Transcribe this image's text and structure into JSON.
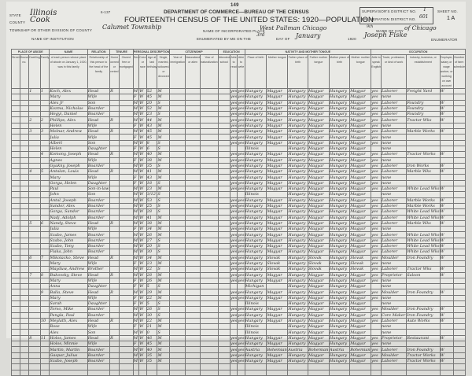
{
  "header": {
    "page_number": "149",
    "form_number": "6-137",
    "department": "DEPARTMENT OF COMMERCE—BUREAU OF THE CENSUS",
    "title": "FOURTEENTH CENSUS OF THE UNITED STATES: 1920—POPULATION",
    "state_label": "STATE",
    "state": "Illinois",
    "county_label": "COUNTY",
    "county": "Cook",
    "township_label": "TOWNSHIP OR OTHER DIVISION OF COUNTY",
    "township": "Calumet Township",
    "institution_label": "NAME OF INSTITUTION",
    "incorporated_place_label": "NAME OF INCORPORATED PLACE",
    "incorporated_place": "West Pullman Chicago",
    "ward_label": "WARD OF CITY",
    "ward": "9th",
    "city": "of Chicago",
    "enumerated_label": "ENUMERATED BY ME ON THE",
    "enumerated_day": "3rd",
    "day_of_label": "DAY OF",
    "enumerated_month": "January",
    "year": "1920",
    "enumerator": "Joseph Fiske",
    "enumerator_label": "ENUMERATOR",
    "supervisor_label": "SUPERVISOR'S DISTRICT NO.",
    "supervisor_district": "1",
    "ed_label": "ENUMERATION DISTRICT NO.",
    "enumeration_district": "601",
    "sheet_label": "SHEET NO.",
    "sheet": "1 A"
  },
  "sections": [
    "PLACE OF ABODE",
    "NAME",
    "RELATION",
    "TENURE",
    "PERSONAL DESCRIPTION",
    "CITIZENSHIP",
    "EDUCATION",
    "NATIVITY AND MOTHER TONGUE",
    "OCCUPATION"
  ],
  "column_headers": [
    "Street",
    "House no.",
    "Dwelling",
    "Family",
    "of each person whose place of abode on January 1, 1920, was in this family",
    "Relationship of this person to the head of the family",
    "Home owned or rented",
    "Owned free or mortgaged",
    "Sex",
    "Color or race",
    "Age at last birthday",
    "Single, married, widowed, or divorced",
    "Year of immigration",
    "Naturalized or alien",
    "Year of naturalization",
    "Attended school",
    "Able to read",
    "Able to write",
    "Place of birth",
    "Mother tongue",
    "Father place of birth",
    "Father mother tongue",
    "Mother place of birth",
    "Mother mother tongue",
    "Able to speak English",
    "Trade, profession, or kind of work",
    "Industry, business, or establishment",
    "Employer, salary or wage worker, or working on own account",
    "Number of farm schedule"
  ],
  "rows": [
    [
      "",
      "1",
      "1",
      "Koch, Alex",
      "Head",
      "R",
      "M",
      "W",
      "52",
      "M",
      "Hungary",
      "Magyar",
      "Hungary",
      "Magyar",
      "Hungary",
      "Magyar",
      "Laborer",
      "Freight Yard"
    ],
    [
      "",
      "",
      "",
      "Mary",
      "Wife",
      "",
      "F",
      "W",
      "45",
      "M",
      "Hungary",
      "Magyar",
      "Hungary",
      "Magyar",
      "Hungary",
      "Magyar",
      "none",
      ""
    ],
    [
      "",
      "",
      "",
      "Alex Jr",
      "Son",
      "",
      "M",
      "W",
      "20",
      "S",
      "Hungary",
      "Magyar",
      "Hungary",
      "Magyar",
      "Hungary",
      "Magyar",
      "Laborer",
      "Foundry"
    ],
    [
      "",
      "",
      "",
      "Kozma, Nicholas",
      "Boarder",
      "",
      "M",
      "W",
      "52",
      "M",
      "Hungary",
      "Magyar",
      "Hungary",
      "Magyar",
      "Hungary",
      "Magyar",
      "Laborer",
      "Foundry"
    ],
    [
      "",
      "",
      "",
      "Hegyi, Daniel",
      "Boarder",
      "",
      "M",
      "W",
      "23",
      "S",
      "Hungary",
      "Magyar",
      "Hungary",
      "Magyar",
      "Hungary",
      "Magyar",
      "Laborer",
      "Foundry"
    ],
    [
      "",
      "2",
      "2",
      "Phillips, Alex",
      "Head",
      "R",
      "M",
      "W",
      "44",
      "M",
      "Hungary",
      "Magyar",
      "Hungary",
      "Magyar",
      "Hungary",
      "Magyar",
      "Laborer",
      "Tractor Wks"
    ],
    [
      "",
      "",
      "",
      "Helen",
      "Wife",
      "",
      "F",
      "W",
      "43",
      "M",
      "Hungary",
      "Magyar",
      "Hungary",
      "Magyar",
      "Hungary",
      "Magyar",
      "none",
      ""
    ],
    [
      "",
      "3",
      "3",
      "Molnar, Andrew",
      "Head",
      "R",
      "M",
      "W",
      "45",
      "M",
      "Hungary",
      "Magyar",
      "Hungary",
      "Magyar",
      "Hungary",
      "Magyar",
      "Laborer",
      "Marble Works"
    ],
    [
      "",
      "",
      "",
      "Julia",
      "Wife",
      "",
      "F",
      "W",
      "45",
      "M",
      "Hungary",
      "Magyar",
      "Hungary",
      "Magyar",
      "Hungary",
      "Magyar",
      "none",
      ""
    ],
    [
      "",
      "",
      "",
      "Albert",
      "Son",
      "",
      "M",
      "W",
      "8",
      "S",
      "Hungary",
      "Magyar",
      "Hungary",
      "Magyar",
      "Hungary",
      "Magyar",
      "none",
      ""
    ],
    [
      "",
      "",
      "",
      "Helen",
      "Daughter",
      "",
      "F",
      "W",
      "6",
      "S",
      "Illinois",
      "",
      "Hungary",
      "Magyar",
      "Hungary",
      "Magyar",
      "none",
      ""
    ],
    [
      "",
      "",
      "4",
      "Komony, Joseph",
      "Head",
      "R",
      "M",
      "W",
      "40",
      "M",
      "Hungary",
      "Magyar",
      "Hungary",
      "Magyar",
      "Hungary",
      "Magyar",
      "Laborer",
      "Tractor Works"
    ],
    [
      "",
      "",
      "",
      "Agnes",
      "Wife",
      "",
      "F",
      "W",
      "38",
      "M",
      "Hungary",
      "Magyar",
      "Hungary",
      "Magyar",
      "Hungary",
      "Magyar",
      "none",
      ""
    ],
    [
      "",
      "",
      "",
      "Gyakny, Joseph",
      "Boarder",
      "",
      "M",
      "W",
      "35",
      "S",
      "Hungary",
      "Magyar",
      "Hungary",
      "Magyar",
      "Hungary",
      "Magyar",
      "Laborer",
      "Iron Works"
    ],
    [
      "",
      "4",
      "5",
      "Antalan, Louis",
      "Head",
      "R",
      "M",
      "W",
      "41",
      "M",
      "Hungary",
      "Magyar",
      "Hungary",
      "Magyar",
      "Hungary",
      "Magyar",
      "Laborer",
      "Marble Wks"
    ],
    [
      "",
      "",
      "",
      "Mary",
      "Wife",
      "",
      "F",
      "W",
      "43",
      "M",
      "Hungary",
      "Magyar",
      "Hungary",
      "Magyar",
      "Hungary",
      "Magyar",
      "none",
      ""
    ],
    [
      "",
      "",
      "",
      "Gorga, Helen",
      "Daughter",
      "",
      "F",
      "W",
      "18",
      "S",
      "Hungary",
      "Magyar",
      "Hungary",
      "Magyar",
      "Hungary",
      "Magyar",
      "none",
      ""
    ],
    [
      "",
      "",
      "",
      "Paul",
      "Son-in-law",
      "",
      "M",
      "W",
      "23",
      "M",
      "Hungary",
      "Magyar",
      "Hungary",
      "Magyar",
      "Hungary",
      "Magyar",
      "Laborer",
      "White Lead Wks"
    ],
    [
      "",
      "",
      "",
      "John",
      "Son",
      "",
      "M",
      "W",
      "3/12",
      "S",
      "Illinois",
      "",
      "Hungary",
      "Magyar",
      "Hungary",
      "Magyar",
      "none",
      ""
    ],
    [
      "",
      "",
      "",
      "Antal, Joseph",
      "Boarder",
      "",
      "M",
      "W",
      "53",
      "S",
      "Hungary",
      "Magyar",
      "Hungary",
      "Magyar",
      "Hungary",
      "Magyar",
      "Laborer",
      "Marble Works"
    ],
    [
      "",
      "",
      "",
      "Sandor, Alex",
      "Boarder",
      "",
      "M",
      "W",
      "25",
      "S",
      "Hungary",
      "Magyar",
      "Hungary",
      "Magyar",
      "Hungary",
      "Magyar",
      "Laborer",
      "Marble Works"
    ],
    [
      "",
      "",
      "",
      "Gorga, Sandor",
      "Boarder",
      "",
      "M",
      "W",
      "28",
      "S",
      "Hungary",
      "Magyar",
      "Hungary",
      "Magyar",
      "Hungary",
      "Magyar",
      "Laborer",
      "White Lead Wks"
    ],
    [
      "",
      "",
      "",
      "Nadj, Adolph",
      "Boarder",
      "",
      "M",
      "W",
      "41",
      "M",
      "Hungary",
      "Magyar",
      "Hungary",
      "Magyar",
      "Hungary",
      "Magyar",
      "Laborer",
      "White Lead Wks"
    ],
    [
      "",
      "5",
      "6",
      "Nandy, Steve",
      "Head",
      "R",
      "M",
      "W",
      "38",
      "M",
      "Hungary",
      "Magyar",
      "Hungary",
      "Magyar",
      "Hungary",
      "Magyar",
      "Laborer",
      "Marble Wks"
    ],
    [
      "",
      "",
      "",
      "Julia",
      "Wife",
      "",
      "F",
      "W",
      "34",
      "M",
      "Hungary",
      "Magyar",
      "Hungary",
      "Magyar",
      "Hungary",
      "Magyar",
      "none",
      ""
    ],
    [
      "",
      "",
      "",
      "Szabo, James",
      "Boarder",
      "",
      "M",
      "W",
      "26",
      "M",
      "Hungary",
      "Magyar",
      "Hungary",
      "Magyar",
      "Hungary",
      "Magyar",
      "Laborer",
      "White Lead Wks"
    ],
    [
      "",
      "",
      "",
      "Szabo, John",
      "Boarder",
      "",
      "M",
      "W",
      "27",
      "S",
      "Hungary",
      "Magyar",
      "Hungary",
      "Magyar",
      "Hungary",
      "Magyar",
      "Laborer",
      "White Lead Wks"
    ],
    [
      "",
      "",
      "",
      "Szabo, Tony",
      "Boarder",
      "",
      "M",
      "W",
      "20",
      "S",
      "Hungary",
      "Magyar",
      "Hungary",
      "Magyar",
      "Hungary",
      "Magyar",
      "Laborer",
      "White Lead Wks"
    ],
    [
      "",
      "",
      "",
      "Flaka, John",
      "Boarder",
      "",
      "M",
      "W",
      "30",
      "S",
      "Hungary",
      "Magyar",
      "Hungary",
      "Magyar",
      "Hungary",
      "Magyar",
      "Laborer",
      "White Lead Wks"
    ],
    [
      "",
      "6",
      "7",
      "Mikolacko, Steve",
      "Head",
      "R",
      "M",
      "W",
      "34",
      "M",
      "Hungary",
      "Slovak",
      "Hungary",
      "Slovak",
      "Hungary",
      "Slovak",
      "Moulder",
      "Iron Foundry"
    ],
    [
      "",
      "",
      "",
      "Mary",
      "Wife",
      "",
      "F",
      "W",
      "23",
      "M",
      "Hungary",
      "Slovak",
      "Hungary",
      "Slovak",
      "Hungary",
      "Slovak",
      "none",
      ""
    ],
    [
      "",
      "",
      "",
      "Mayduw, Andrew",
      "Brother",
      "",
      "M",
      "W",
      "22",
      "S",
      "Hungary",
      "Slovak",
      "Hungary",
      "Slovak",
      "Hungary",
      "Slovak",
      "Laborer",
      "Tractor Wks"
    ],
    [
      "",
      "7",
      "8",
      "Bukovsky, Steve",
      "Head",
      "R",
      "M",
      "W",
      "28",
      "M",
      "Hungary",
      "Magyar",
      "Hungary",
      "Magyar",
      "Hungary",
      "Magyar",
      "Proprietor",
      "Saloon"
    ],
    [
      "",
      "",
      "",
      "Mary",
      "Wife",
      "",
      "F",
      "W",
      "26",
      "M",
      "Hungary",
      "Magyar",
      "Hungary",
      "Magyar",
      "Hungary",
      "Magyar",
      "none",
      ""
    ],
    [
      "",
      "",
      "",
      "Anna",
      "Daughter",
      "",
      "F",
      "W",
      "5",
      "S",
      "Michigan",
      "",
      "Hungary",
      "Magyar",
      "Hungary",
      "Magyar",
      "none",
      ""
    ],
    [
      "",
      "",
      "9",
      "Balla, Steve",
      "Head",
      "R",
      "M",
      "W",
      "29",
      "M",
      "Hungary",
      "Magyar",
      "Hungary",
      "Magyar",
      "Hungary",
      "Magyar",
      "Moulder",
      "Iron Foundry"
    ],
    [
      "",
      "",
      "",
      "Mary",
      "Wife",
      "",
      "F",
      "W",
      "22",
      "M",
      "Hungary",
      "Magyar",
      "Hungary",
      "Magyar",
      "Hungary",
      "Magyar",
      "none",
      ""
    ],
    [
      "",
      "",
      "",
      "Sarah",
      "Daughter",
      "",
      "F",
      "W",
      "5",
      "S",
      "Illinois",
      "",
      "Hungary",
      "Magyar",
      "Hungary",
      "Magyar",
      "none",
      ""
    ],
    [
      "",
      "",
      "",
      "Torso, Mike",
      "Boarder",
      "",
      "M",
      "W",
      "26",
      "S",
      "Hungary",
      "Magyar",
      "Hungary",
      "Magyar",
      "Hungary",
      "Magyar",
      "Moulder",
      "Iron Foundry"
    ],
    [
      "",
      "",
      "",
      "Pangla, Paul",
      "Boarder",
      "",
      "M",
      "W",
      "30",
      "S",
      "Hungary",
      "Magyar",
      "Hungary",
      "Magyar",
      "Hungary",
      "Magyar",
      "Core Maker",
      "Iron Foundry"
    ],
    [
      "",
      "",
      "10",
      "Meylath, Alex",
      "Head",
      "R",
      "M",
      "W",
      "22",
      "M",
      "Hungary",
      "Magyar",
      "Hungary",
      "Magyar",
      "Hungary",
      "Magyar",
      "Laborer",
      "Auto Works"
    ],
    [
      "",
      "",
      "",
      "Rose",
      "Wife",
      "",
      "F",
      "W",
      "21",
      "M",
      "Illinois",
      "",
      "Hungary",
      "Magyar",
      "Hungary",
      "Magyar",
      "none",
      ""
    ],
    [
      "",
      "",
      "",
      "Alex",
      "Son",
      "",
      "M",
      "W",
      "0",
      "S",
      "Illinois",
      "",
      "Hungary",
      "Magyar",
      "Hungary",
      "Magyar",
      "none",
      ""
    ],
    [
      "",
      "8",
      "11",
      "Holos, James",
      "Head",
      "R",
      "M",
      "W",
      "46",
      "M",
      "Hungary",
      "Magyar",
      "Hungary",
      "Magyar",
      "Hungary",
      "Magyar",
      "Proprietor",
      "Restaurant"
    ],
    [
      "",
      "",
      "",
      "Holos, Minnie",
      "Wife",
      "",
      "F",
      "W",
      "45",
      "M",
      "Hungary",
      "Magyar",
      "Hungary",
      "Magyar",
      "Hungary",
      "Magyar",
      "none",
      ""
    ],
    [
      "",
      "",
      "",
      "Martin, Martin",
      "Boarder",
      "",
      "M",
      "W",
      "40",
      "M",
      "Austria",
      "Bohemian",
      "Austria",
      "Bohemian",
      "Austria",
      "Bohemian",
      "Laborer",
      "Iron Foundry"
    ],
    [
      "",
      "",
      "",
      "Gaspar, Julius",
      "Boarder",
      "",
      "M",
      "W",
      "35",
      "M",
      "Hungary",
      "Magyar",
      "Hungary",
      "Magyar",
      "Hungary",
      "Magyar",
      "Moulder",
      "Tractor Works"
    ],
    [
      "",
      "",
      "",
      "Szabo, Joseph",
      "Boarder",
      "",
      "M",
      "W",
      "35",
      "M",
      "Hungary",
      "Magyar",
      "Hungary",
      "Magyar",
      "Hungary",
      "Magyar",
      "Laborer",
      "Tractor Works"
    ],
    [
      "",
      "",
      "",
      "",
      "",
      "",
      "",
      "",
      "",
      "",
      "",
      "",
      "",
      "",
      "",
      "",
      "",
      ""
    ],
    [
      "",
      "",
      "",
      "",
      "",
      "",
      "",
      "",
      "",
      "",
      "",
      "",
      "",
      "",
      "",
      "",
      "",
      ""
    ]
  ]
}
